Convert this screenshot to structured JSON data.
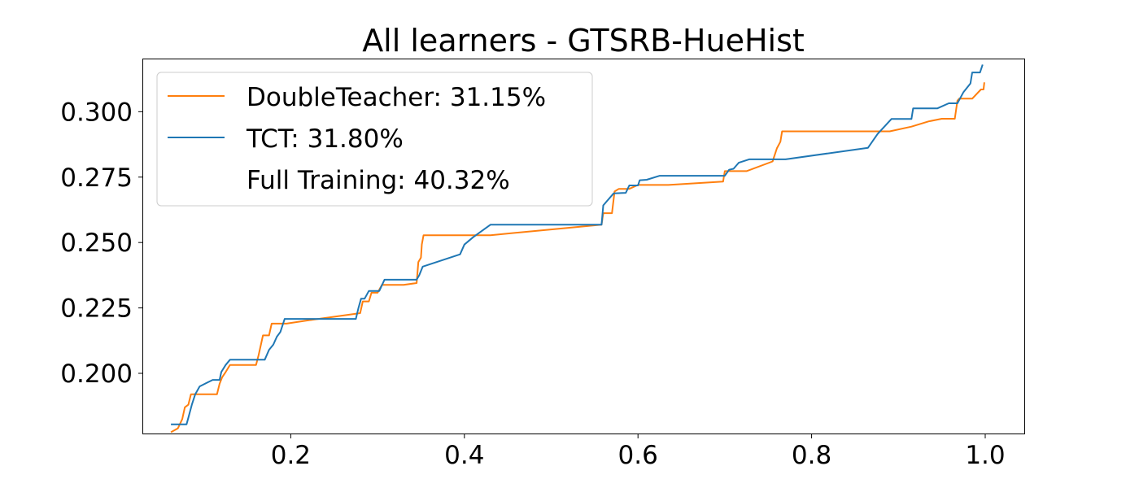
{
  "chart_data": {
    "type": "line",
    "title": "All learners - GTSRB-HueHist",
    "xlabel": "",
    "ylabel": "",
    "xlim": [
      0.03,
      1.045
    ],
    "ylim": [
      0.177,
      0.32
    ],
    "xticks": [
      0.2,
      0.4,
      0.6,
      0.8,
      1.0
    ],
    "xtick_labels": [
      "0.2",
      "0.4",
      "0.6",
      "0.8",
      "1.0"
    ],
    "yticks": [
      0.2,
      0.225,
      0.25,
      0.275,
      0.3
    ],
    "ytick_labels": [
      "0.200",
      "0.225",
      "0.250",
      "0.275",
      "0.300"
    ],
    "grid": false,
    "legend": {
      "placement": "top-left"
    },
    "series": [
      {
        "name": "DoubleTeacher: 31.15%",
        "color": "#ff7f0e",
        "points": [
          [
            0.062,
            0.1775
          ],
          [
            0.07,
            0.179
          ],
          [
            0.075,
            0.1825
          ],
          [
            0.078,
            0.187
          ],
          [
            0.082,
            0.188
          ],
          [
            0.085,
            0.192
          ],
          [
            0.115,
            0.192
          ],
          [
            0.118,
            0.196
          ],
          [
            0.121,
            0.1985
          ],
          [
            0.125,
            0.2005
          ],
          [
            0.13,
            0.2032
          ],
          [
            0.16,
            0.2032
          ],
          [
            0.163,
            0.207
          ],
          [
            0.166,
            0.2115
          ],
          [
            0.168,
            0.2145
          ],
          [
            0.175,
            0.2145
          ],
          [
            0.178,
            0.219
          ],
          [
            0.195,
            0.219
          ],
          [
            0.225,
            0.2205
          ],
          [
            0.28,
            0.223
          ],
          [
            0.283,
            0.2275
          ],
          [
            0.29,
            0.2275
          ],
          [
            0.293,
            0.2308
          ],
          [
            0.3,
            0.2308
          ],
          [
            0.305,
            0.2338
          ],
          [
            0.33,
            0.2338
          ],
          [
            0.345,
            0.2345
          ],
          [
            0.347,
            0.2425
          ],
          [
            0.35,
            0.2442
          ],
          [
            0.351,
            0.2493
          ],
          [
            0.353,
            0.2528
          ],
          [
            0.43,
            0.2528
          ],
          [
            0.5,
            0.255
          ],
          [
            0.558,
            0.2568
          ],
          [
            0.56,
            0.2612
          ],
          [
            0.57,
            0.2612
          ],
          [
            0.573,
            0.2695
          ],
          [
            0.578,
            0.2705
          ],
          [
            0.59,
            0.2705
          ],
          [
            0.6,
            0.272
          ],
          [
            0.635,
            0.272
          ],
          [
            0.698,
            0.2733
          ],
          [
            0.7,
            0.2773
          ],
          [
            0.725,
            0.2773
          ],
          [
            0.755,
            0.281
          ],
          [
            0.76,
            0.286
          ],
          [
            0.764,
            0.2885
          ],
          [
            0.766,
            0.2925
          ],
          [
            0.89,
            0.2925
          ],
          [
            0.915,
            0.2943
          ],
          [
            0.935,
            0.2963
          ],
          [
            0.95,
            0.2973
          ],
          [
            0.965,
            0.2973
          ],
          [
            0.968,
            0.3042
          ],
          [
            0.97,
            0.305
          ],
          [
            0.985,
            0.305
          ],
          [
            0.995,
            0.3085
          ],
          [
            0.998,
            0.3085
          ],
          [
            0.999,
            0.3112
          ]
        ]
      },
      {
        "name": "TCT: 31.80%",
        "color": "#1f77b4",
        "points": [
          [
            0.062,
            0.1805
          ],
          [
            0.08,
            0.1805
          ],
          [
            0.082,
            0.183
          ],
          [
            0.086,
            0.188
          ],
          [
            0.09,
            0.192
          ],
          [
            0.095,
            0.195
          ],
          [
            0.11,
            0.1975
          ],
          [
            0.118,
            0.1975
          ],
          [
            0.12,
            0.2005
          ],
          [
            0.125,
            0.2032
          ],
          [
            0.13,
            0.2052
          ],
          [
            0.17,
            0.2052
          ],
          [
            0.175,
            0.209
          ],
          [
            0.18,
            0.211
          ],
          [
            0.184,
            0.214
          ],
          [
            0.188,
            0.2158
          ],
          [
            0.193,
            0.2208
          ],
          [
            0.275,
            0.2208
          ],
          [
            0.278,
            0.225
          ],
          [
            0.281,
            0.2285
          ],
          [
            0.285,
            0.2285
          ],
          [
            0.29,
            0.2315
          ],
          [
            0.302,
            0.2315
          ],
          [
            0.308,
            0.2358
          ],
          [
            0.345,
            0.2358
          ],
          [
            0.348,
            0.2375
          ],
          [
            0.352,
            0.2408
          ],
          [
            0.395,
            0.2455
          ],
          [
            0.4,
            0.2492
          ],
          [
            0.41,
            0.252
          ],
          [
            0.43,
            0.2568
          ],
          [
            0.558,
            0.2568
          ],
          [
            0.56,
            0.2642
          ],
          [
            0.572,
            0.2688
          ],
          [
            0.586,
            0.269
          ],
          [
            0.59,
            0.2718
          ],
          [
            0.6,
            0.2718
          ],
          [
            0.602,
            0.2738
          ],
          [
            0.61,
            0.274
          ],
          [
            0.625,
            0.2755
          ],
          [
            0.7,
            0.2755
          ],
          [
            0.705,
            0.2778
          ],
          [
            0.71,
            0.2782
          ],
          [
            0.716,
            0.2805
          ],
          [
            0.728,
            0.2818
          ],
          [
            0.77,
            0.2818
          ],
          [
            0.865,
            0.2862
          ],
          [
            0.876,
            0.2915
          ],
          [
            0.892,
            0.2972
          ],
          [
            0.915,
            0.2972
          ],
          [
            0.917,
            0.3013
          ],
          [
            0.945,
            0.3013
          ],
          [
            0.958,
            0.3032
          ],
          [
            0.968,
            0.3032
          ],
          [
            0.975,
            0.3075
          ],
          [
            0.983,
            0.3108
          ],
          [
            0.985,
            0.315
          ],
          [
            0.994,
            0.315
          ],
          [
            0.997,
            0.318
          ]
        ]
      },
      {
        "name": "Full Training: 40.32%",
        "color": "none",
        "points": []
      }
    ]
  }
}
